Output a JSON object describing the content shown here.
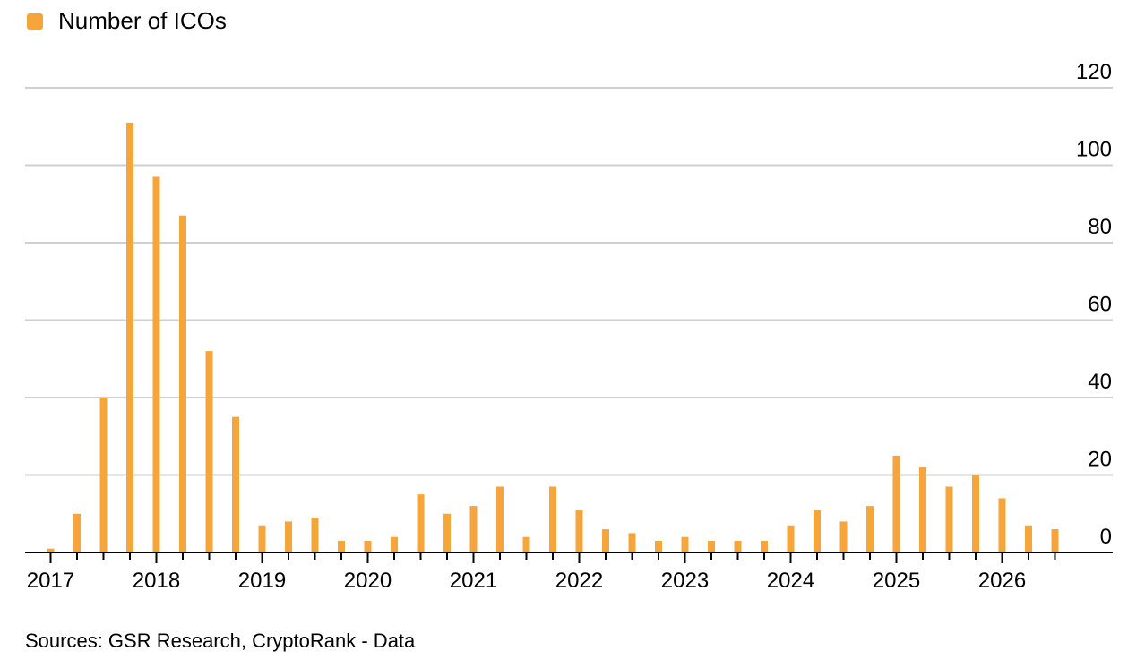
{
  "legend": {
    "label": "Number of ICOs",
    "color": "#F6A53B"
  },
  "source": "Sources: GSR Research, CryptoRank - Data",
  "chart_data": {
    "type": "bar",
    "title": "",
    "xlabel": "",
    "ylabel": "",
    "ylim": [
      0,
      120
    ],
    "y_ticks": [
      0,
      20,
      40,
      60,
      80,
      100,
      120
    ],
    "x_ticks": [
      "2017",
      "2018",
      "2019",
      "2020",
      "2021",
      "2022",
      "2023",
      "2024",
      "2025",
      "2026"
    ],
    "grid": true,
    "legend_position": "top-left",
    "bar_color": "#F6A53B",
    "series": [
      {
        "name": "Number of ICOs",
        "categories": [
          "2017 Q1",
          "2017 Q2",
          "2017 Q3",
          "2017 Q4",
          "2018 Q1",
          "2018 Q2",
          "2018 Q3",
          "2018 Q4",
          "2019 Q1",
          "2019 Q2",
          "2019 Q3",
          "2019 Q4",
          "2020 Q1",
          "2020 Q2",
          "2020 Q3",
          "2020 Q4",
          "2021 Q1",
          "2021 Q2",
          "2021 Q3",
          "2021 Q4",
          "2022 Q1",
          "2022 Q2",
          "2022 Q3",
          "2022 Q4",
          "2023 Q1",
          "2023 Q2",
          "2023 Q3",
          "2023 Q4",
          "2024 Q1",
          "2024 Q2",
          "2024 Q3",
          "2024 Q4",
          "2025 Q1",
          "2025 Q2",
          "2025 Q3",
          "2025 Q4",
          "2026 Q1",
          "2026 Q2",
          "2026 Q3"
        ],
        "values": [
          1,
          10,
          40,
          111,
          97,
          87,
          52,
          35,
          7,
          8,
          9,
          3,
          3,
          4,
          15,
          10,
          12,
          17,
          4,
          17,
          11,
          6,
          5,
          3,
          4,
          3,
          3,
          3,
          7,
          11,
          8,
          12,
          25,
          22,
          17,
          20,
          14,
          7,
          6
        ]
      }
    ]
  }
}
